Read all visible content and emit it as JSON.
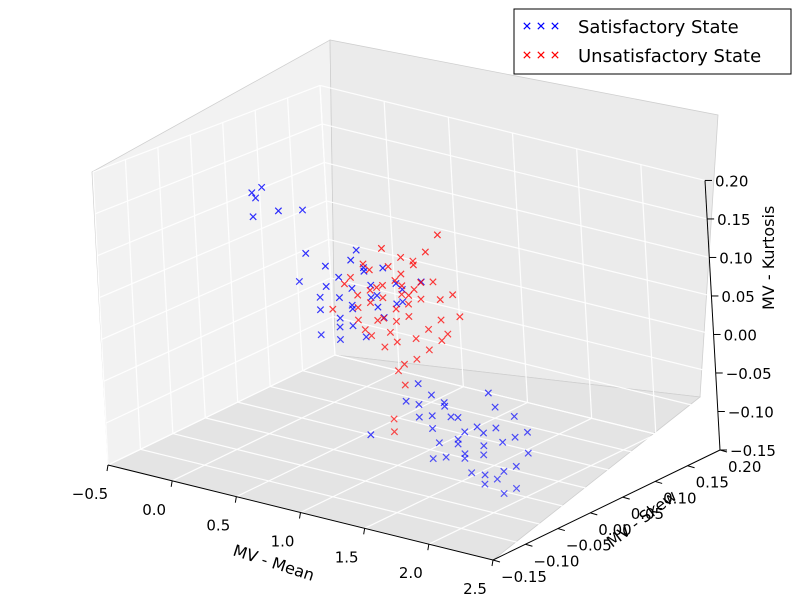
{
  "chart_data": {
    "type": "scatter",
    "projection": "3d",
    "xlabel": "MV - Mean",
    "ylabel": "MV - Skew",
    "zlabel": "MV - Kurtosis",
    "xlim": [
      -0.5,
      2.5
    ],
    "ylim": [
      -0.15,
      0.2
    ],
    "zlim": [
      -0.15,
      0.2
    ],
    "xticks": [
      "−0.5",
      "0.0",
      "0.5",
      "1.0",
      "1.5",
      "2.0",
      "2.5"
    ],
    "yticks": [
      "−0.15",
      "−0.10",
      "−0.05",
      "0.00",
      "0.05",
      "0.10",
      "0.15",
      "0.20"
    ],
    "zticks": [
      "−0.15",
      "−0.10",
      "−0.05",
      "0.00",
      "0.05",
      "0.10",
      "0.15",
      "0.20"
    ],
    "grid": true,
    "legend": "top-right",
    "marker": "x",
    "series": [
      {
        "name": "Satisfactory State",
        "color": "#0000ff",
        "points": [
          [
            -0.3,
            0.05,
            0.12
          ],
          [
            -0.3,
            0.05,
            0.09
          ],
          [
            -0.22,
            0.04,
            0.12
          ],
          [
            -0.22,
            0.05,
            0.13
          ],
          [
            -0.15,
            0.06,
            0.1
          ],
          [
            0.25,
            0.02,
            0.13
          ],
          [
            0.3,
            0.0,
            0.05
          ],
          [
            0.1,
            0.05,
            0.06
          ],
          [
            0.25,
            0.05,
            0.05
          ],
          [
            0.35,
            0.05,
            0.04
          ],
          [
            0.45,
            0.05,
            0.03
          ],
          [
            0.4,
            0.04,
            0.02
          ],
          [
            0.3,
            0.03,
            0.02
          ],
          [
            0.5,
            0.06,
            0.05
          ],
          [
            0.55,
            0.05,
            0.06
          ],
          [
            0.6,
            0.05,
            0.04
          ],
          [
            0.65,
            0.04,
            0.03
          ],
          [
            0.5,
            0.04,
            0.01
          ],
          [
            0.45,
            0.03,
            0.0
          ],
          [
            0.6,
            0.02,
            0.0
          ],
          [
            0.7,
            0.04,
            0.02
          ],
          [
            0.8,
            0.05,
            0.05
          ],
          [
            0.85,
            0.04,
            0.03
          ],
          [
            0.55,
            0.03,
            0.02
          ],
          [
            0.4,
            0.06,
            0.06
          ],
          [
            0.3,
            0.04,
            0.03
          ],
          [
            0.6,
            0.0,
            -0.01
          ],
          [
            0.7,
            0.02,
            -0.01
          ],
          [
            0.5,
            0.05,
            0.08
          ],
          [
            0.65,
            0.06,
            0.06
          ],
          [
            0.75,
            0.03,
            0.04
          ],
          [
            0.85,
            0.02,
            0.02
          ],
          [
            0.95,
            0.03,
            0.04
          ],
          [
            0.45,
            0.0,
            -0.01
          ],
          [
            0.35,
            0.02,
            0.01
          ],
          [
            0.9,
            0.04,
            0.05
          ],
          [
            1.0,
            0.05,
            0.06
          ],
          [
            0.55,
            0.01,
            0.0
          ],
          [
            1.4,
            -0.02,
            -0.04
          ],
          [
            1.5,
            -0.02,
            -0.05
          ],
          [
            1.6,
            -0.02,
            -0.06
          ],
          [
            1.7,
            -0.03,
            -0.07
          ],
          [
            1.8,
            -0.03,
            -0.06
          ],
          [
            1.9,
            -0.04,
            -0.06
          ],
          [
            2.0,
            -0.04,
            -0.05
          ],
          [
            2.1,
            -0.05,
            -0.06
          ],
          [
            2.2,
            -0.05,
            -0.05
          ],
          [
            2.3,
            -0.05,
            -0.04
          ],
          [
            2.35,
            -0.06,
            -0.06
          ],
          [
            2.25,
            -0.06,
            -0.08
          ],
          [
            2.15,
            -0.06,
            -0.09
          ],
          [
            2.05,
            -0.07,
            -0.07
          ],
          [
            1.95,
            -0.05,
            -0.07
          ],
          [
            1.85,
            -0.06,
            -0.08
          ],
          [
            1.75,
            -0.05,
            -0.07
          ],
          [
            1.65,
            -0.04,
            -0.05
          ],
          [
            1.55,
            -0.03,
            -0.04
          ],
          [
            1.45,
            -0.03,
            -0.06
          ],
          [
            1.35,
            -0.03,
            -0.05
          ],
          [
            1.5,
            -0.04,
            -0.07
          ],
          [
            1.6,
            -0.05,
            -0.08
          ],
          [
            1.7,
            -0.06,
            -0.09
          ],
          [
            1.8,
            -0.06,
            -0.07
          ],
          [
            1.9,
            -0.07,
            -0.08
          ],
          [
            2.0,
            -0.08,
            -0.09
          ],
          [
            2.1,
            -0.08,
            -0.1
          ],
          [
            2.2,
            -0.08,
            -0.09
          ],
          [
            2.3,
            -0.09,
            -0.1
          ],
          [
            2.4,
            -0.09,
            -0.09
          ],
          [
            1.3,
            -0.02,
            -0.03
          ],
          [
            1.4,
            -0.04,
            -0.06
          ],
          [
            1.25,
            -0.03,
            -0.05
          ],
          [
            2.15,
            -0.04,
            -0.03
          ],
          [
            1.95,
            -0.03,
            -0.03
          ],
          [
            1.85,
            -0.02,
            -0.02
          ],
          [
            2.0,
            -0.06,
            -0.1
          ],
          [
            1.65,
            -0.07,
            -0.09
          ],
          [
            0.8,
            0.0,
            -0.12
          ]
        ]
      },
      {
        "name": "Unsatisfactory State",
        "color": "#ff0000",
        "points": [
          [
            0.6,
            0.02,
            0.06
          ],
          [
            0.7,
            0.03,
            0.07
          ],
          [
            0.75,
            0.02,
            0.05
          ],
          [
            0.8,
            0.01,
            0.04
          ],
          [
            0.85,
            0.02,
            0.06
          ],
          [
            0.9,
            0.01,
            0.05
          ],
          [
            0.95,
            0.0,
            0.03
          ],
          [
            1.0,
            0.01,
            0.04
          ],
          [
            1.05,
            0.0,
            0.03
          ],
          [
            1.1,
            0.01,
            0.05
          ],
          [
            1.15,
            0.0,
            0.04
          ],
          [
            1.2,
            0.01,
            0.06
          ],
          [
            1.25,
            -0.01,
            0.02
          ],
          [
            1.3,
            0.0,
            0.03
          ],
          [
            1.35,
            0.01,
            0.04
          ],
          [
            1.4,
            0.0,
            0.02
          ],
          [
            1.0,
            0.02,
            0.08
          ],
          [
            1.05,
            0.03,
            0.09
          ],
          [
            1.1,
            0.02,
            0.1
          ],
          [
            1.15,
            0.03,
            0.11
          ],
          [
            1.2,
            0.04,
            0.13
          ],
          [
            1.25,
            0.02,
            0.08
          ],
          [
            0.85,
            0.03,
            0.08
          ],
          [
            0.9,
            0.04,
            0.09
          ],
          [
            0.95,
            0.03,
            0.06
          ],
          [
            0.7,
            0.01,
            0.03
          ],
          [
            0.75,
            0.0,
            0.02
          ],
          [
            0.65,
            0.02,
            0.04
          ],
          [
            0.55,
            0.02,
            0.05
          ],
          [
            0.5,
            0.01,
            0.02
          ],
          [
            1.1,
            -0.01,
            0.01
          ],
          [
            1.2,
            -0.02,
            -0.01
          ],
          [
            1.3,
            -0.02,
            0.0
          ],
          [
            1.15,
            -0.02,
            -0.02
          ],
          [
            1.25,
            -0.03,
            -0.03
          ],
          [
            1.35,
            -0.01,
            0.01
          ],
          [
            1.45,
            0.0,
            0.03
          ],
          [
            1.5,
            0.01,
            0.05
          ],
          [
            1.0,
            -0.01,
            0.0
          ],
          [
            0.9,
            -0.01,
            0.01
          ],
          [
            0.8,
            0.0,
            0.01
          ],
          [
            1.2,
            -0.04,
            -0.07
          ],
          [
            1.25,
            -0.05,
            -0.08
          ],
          [
            1.05,
            0.01,
            0.06
          ],
          [
            1.15,
            0.01,
            0.07
          ],
          [
            0.95,
            0.02,
            0.07
          ],
          [
            0.6,
            0.04,
            0.07
          ],
          [
            0.7,
            0.05,
            0.09
          ],
          [
            1.3,
            0.02,
            0.06
          ],
          [
            1.4,
            0.02,
            0.07
          ],
          [
            1.05,
            -0.01,
            0.02
          ],
          [
            0.85,
            0.01,
            0.02
          ],
          [
            1.1,
            0.03,
            0.07
          ],
          [
            1.0,
            0.03,
            0.05
          ],
          [
            0.75,
            0.03,
            0.05
          ]
        ]
      }
    ]
  }
}
